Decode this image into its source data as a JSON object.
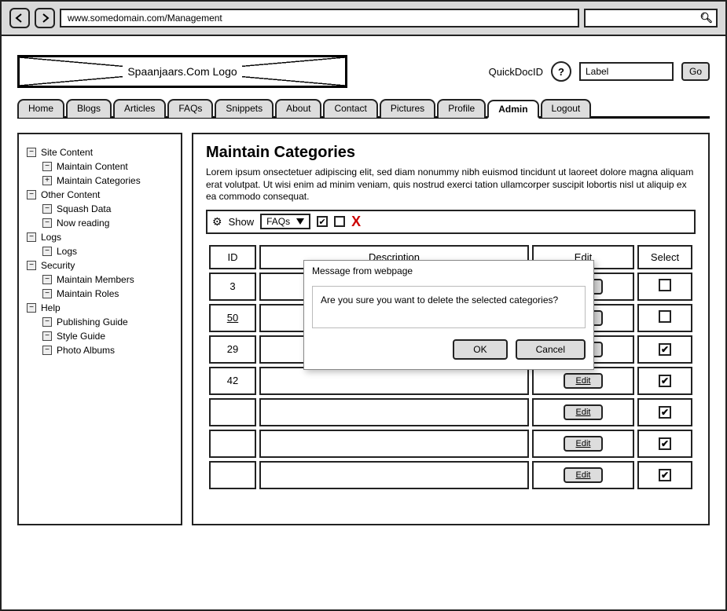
{
  "browser": {
    "url": "www.somedomain.com/Management"
  },
  "header": {
    "logo_text": "Spaanjaars.Com Logo",
    "quickdoc_label": "QuickDocID",
    "label_input_value": "Label",
    "go_button": "Go"
  },
  "tabs": [
    "Home",
    "Blogs",
    "Articles",
    "FAQs",
    "Snippets",
    "About",
    "Contact",
    "Pictures",
    "Profile",
    "Admin",
    "Logout"
  ],
  "active_tab": "Admin",
  "sidebar": {
    "sections": [
      {
        "title": "Site Content",
        "icon": "-",
        "items": [
          {
            "label": "Maintain Content",
            "icon": "-"
          },
          {
            "label": "Maintain Categories",
            "icon": "+"
          }
        ]
      },
      {
        "title": "Other Content",
        "icon": "-",
        "items": [
          {
            "label": "Squash Data",
            "icon": "-"
          },
          {
            "label": "Now reading",
            "icon": "-"
          }
        ]
      },
      {
        "title": "Logs",
        "icon": "-",
        "items": [
          {
            "label": "Logs",
            "icon": "-"
          }
        ]
      },
      {
        "title": "Security",
        "icon": "-",
        "items": [
          {
            "label": "Maintain Members",
            "icon": "-"
          },
          {
            "label": "Maintain Roles",
            "icon": "-"
          }
        ]
      },
      {
        "title": "Help",
        "icon": "-",
        "items": [
          {
            "label": "Publishing Guide",
            "icon": "-"
          },
          {
            "label": "Style Guide",
            "icon": "-"
          },
          {
            "label": "Photo Albums",
            "icon": "-"
          }
        ]
      }
    ]
  },
  "main": {
    "title": "Maintain Categories",
    "lorem": "Lorem ipsum onsectetuer adipiscing elit, sed diam nonummy nibh euismod tincidunt ut laoreet dolore magna aliquam erat volutpat. Ut wisi enim ad minim veniam, quis nostrud exerci tation ullamcorper suscipit lobortis nisl ut aliquip ex ea commodo consequat.",
    "show_label": "Show",
    "dropdown_value": "FAQs",
    "columns": {
      "id": "ID",
      "desc": "Description",
      "edit": "Edit",
      "select": "Select"
    },
    "edit_button_label": "Edit",
    "rows": [
      {
        "id": "3",
        "underline": false,
        "checked": false,
        "edit": true
      },
      {
        "id": "50",
        "underline": true,
        "checked": false,
        "edit": true
      },
      {
        "id": "29",
        "underline": false,
        "checked": true,
        "edit": true
      },
      {
        "id": "42",
        "underline": false,
        "checked": true,
        "edit": true
      },
      {
        "id": "",
        "underline": false,
        "checked": true,
        "edit": true
      },
      {
        "id": "",
        "underline": false,
        "checked": true,
        "edit": true
      },
      {
        "id": "",
        "underline": false,
        "checked": true,
        "edit": true
      }
    ]
  },
  "dialog": {
    "title": "Message from webpage",
    "message": "Are you sure you want to delete the selected categories?",
    "ok": "OK",
    "cancel": "Cancel"
  }
}
